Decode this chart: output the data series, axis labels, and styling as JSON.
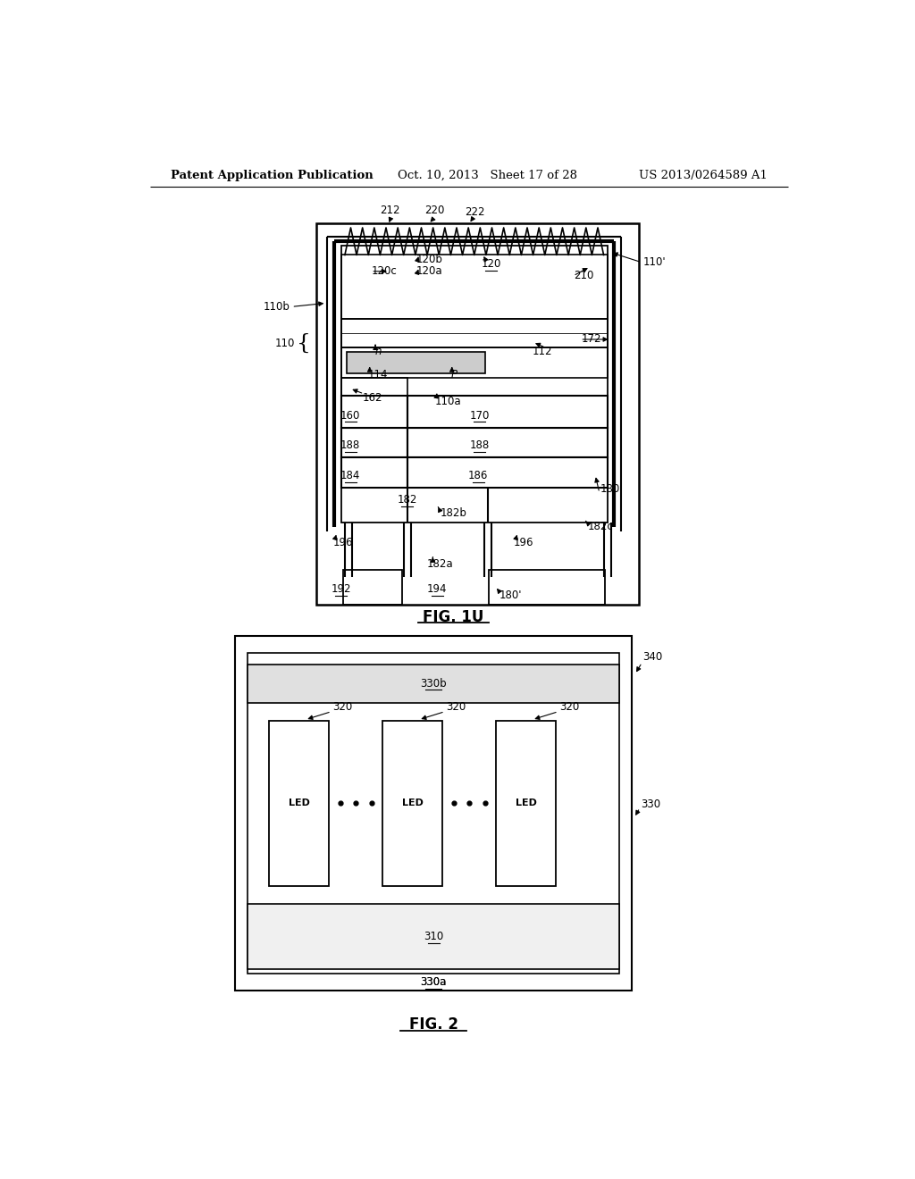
{
  "background_color": "#ffffff",
  "header_left": "Patent Application Publication",
  "header_mid": "Oct. 10, 2013   Sheet 17 of 28",
  "header_right": "US 2013/0264589 A1",
  "line_color": "#000000"
}
